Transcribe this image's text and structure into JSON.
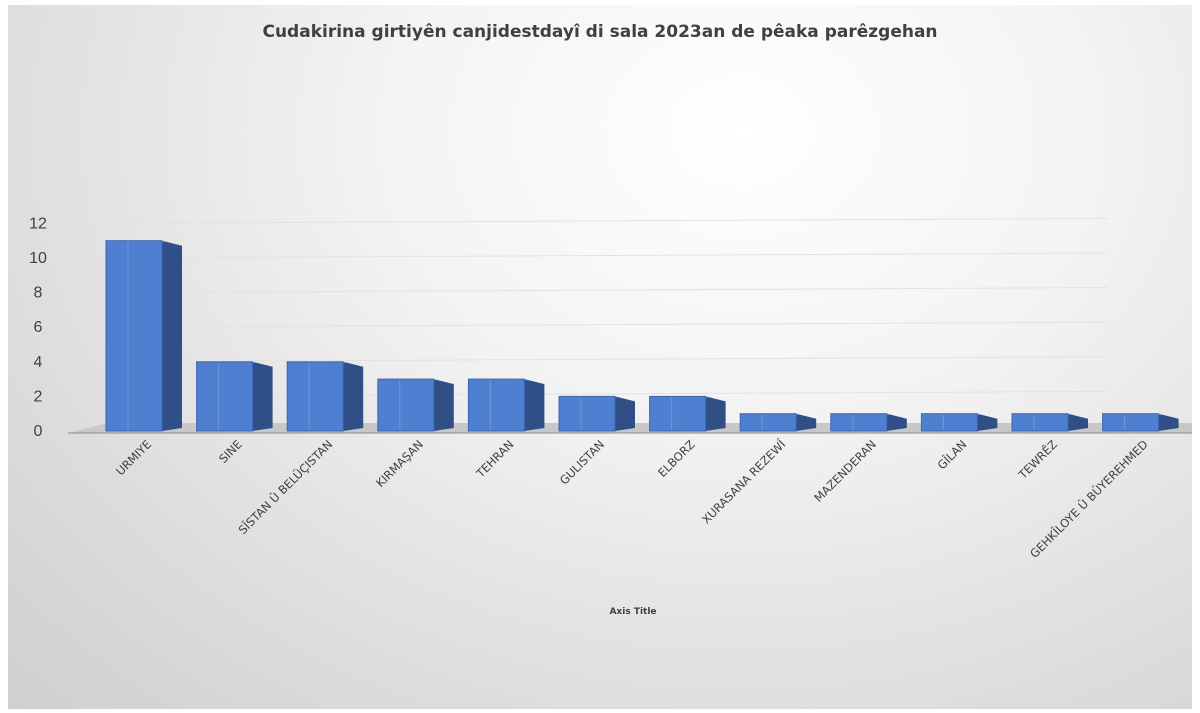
{
  "chart_data": {
    "type": "bar",
    "title": "Cudakirina girtiyên canjidestdayî di sala 2023an de pêaka parêzgehan",
    "xlabel": "Axis Title",
    "ylabel": "",
    "categories": [
      "URMIYE",
      "SINE",
      "SÎSTAN Û BELÛÇISTAN",
      "KIRMAŞAN",
      "TEHRAN",
      "GULISTAN",
      "ELBORZ",
      "XURASANA REZEWÎ",
      "MAZENDERAN",
      "GÎLAN",
      "TEWRÊZ",
      "GEHKÎLOYE Û BÛYEREHMED"
    ],
    "values": [
      11,
      4,
      4,
      3,
      3,
      2,
      2,
      1,
      1,
      1,
      1,
      1
    ],
    "ylim": [
      0,
      12
    ],
    "yticks": [
      0,
      2,
      4,
      6,
      8,
      10,
      12
    ],
    "grid": true,
    "legend": "none",
    "colors": {
      "bar_front": "#4f7fd0",
      "bar_side": "#2f4f86",
      "bar_top": "#6b98e4",
      "floor": "#c8c8c8",
      "grid": "#e2e2e2",
      "text": "#404040"
    }
  }
}
